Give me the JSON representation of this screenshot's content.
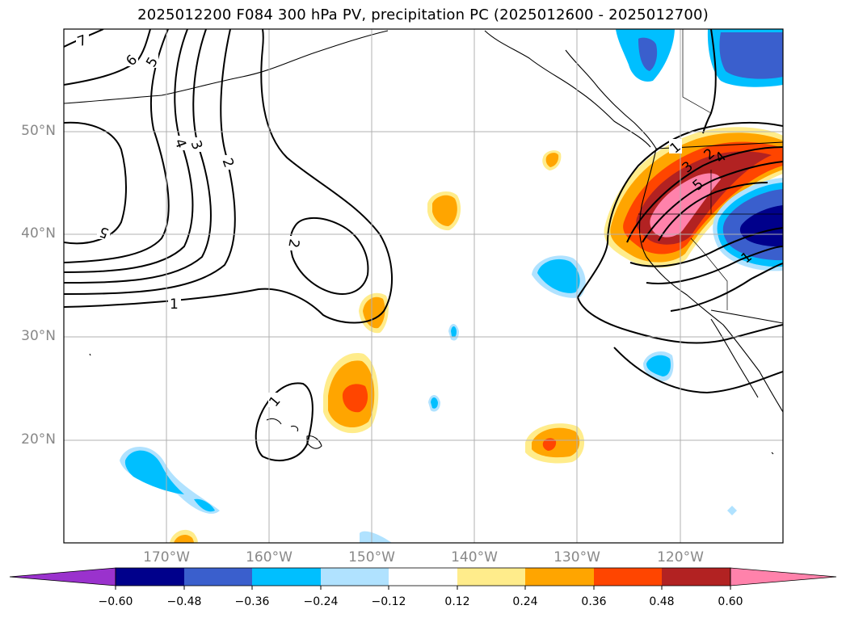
{
  "title": "2025012200 F084 300 hPa PV, precipitation PC (2025012600 - 2025012700)",
  "lat_labels": [
    "50°N",
    "40°N",
    "30°N",
    "20°N"
  ],
  "lon_labels": [
    "170°W",
    "160°W",
    "150°W",
    "140°W",
    "130°W",
    "120°W"
  ],
  "contour_labels": [
    "7",
    "6",
    "5",
    "4",
    "3",
    "2",
    "5",
    "2",
    "1",
    "1",
    "1",
    "2",
    "3",
    "4",
    "5",
    "1"
  ],
  "colorbar": {
    "ticks": [
      "−0.60",
      "−0.48",
      "−0.36",
      "−0.24",
      "−0.12",
      "0.12",
      "0.24",
      "0.36",
      "0.48",
      "0.60"
    ],
    "colors": [
      "#9a32cd",
      "#00008b",
      "#3a5fcd",
      "#00bfff",
      "#b0e2ff",
      "#ffffff",
      "#ffec8b",
      "#ffa500",
      "#ff4500",
      "#b22222",
      "#ff82ab"
    ]
  },
  "colors": {
    "land_line": "#000000",
    "grid": "#b0b0b0",
    "label_gray": "#888888"
  }
}
